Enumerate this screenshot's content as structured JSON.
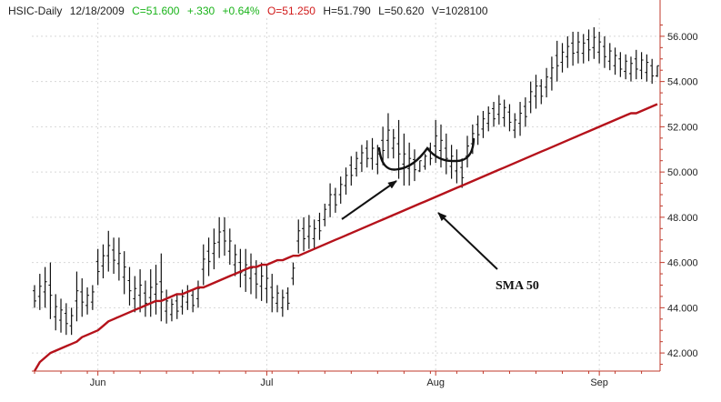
{
  "header": {
    "symbol": "HSIC-Daily",
    "date": "12/18/2009",
    "close": "C=51.600",
    "change": "+.330",
    "change_pct": "+0.64%",
    "open": "O=51.250",
    "high": "H=51.790",
    "low": "L=50.620",
    "volume": "V=1028100"
  },
  "colors": {
    "up": "#19b319",
    "down": "#d11a1a",
    "text": "#222222",
    "price_bars": "#111111",
    "sma": "#b5121b",
    "axis": "#c0392b",
    "grid": "#d8d8d8"
  },
  "chart_data": {
    "type": "ohlc_bar",
    "ylim": [
      41.2,
      56.8
    ],
    "yticks": [
      "42.000",
      "44.000",
      "46.000",
      "48.000",
      "50.000",
      "52.000",
      "54.000",
      "56.000"
    ],
    "ytick_values": [
      42,
      44,
      46,
      48,
      50,
      52,
      54,
      56
    ],
    "xtick_labels": [
      "Jun",
      "Jul",
      "Aug",
      "Sep"
    ],
    "xtick_index": [
      12,
      44,
      76,
      107
    ],
    "grid": "horizontal dashed",
    "price_series": {
      "high": [
        45.0,
        45.5,
        45.8,
        46.0,
        44.6,
        44.4,
        44.2,
        44.0,
        45.6,
        45.3,
        44.9,
        45.0,
        46.6,
        46.8,
        47.4,
        47.1,
        47.1,
        46.5,
        45.8,
        45.4,
        45.7,
        45.2,
        45.7,
        45.9,
        46.4,
        44.8,
        44.4,
        44.6,
        44.8,
        45.0,
        44.8,
        45.2,
        46.8,
        47.1,
        47.5,
        48.0,
        48.0,
        47.5,
        46.8,
        46.6,
        46.6,
        46.4,
        46.1,
        46.0,
        45.9,
        45.5,
        45.0,
        44.8,
        44.9,
        46.0,
        47.9,
        48.0,
        48.1,
        47.9,
        48.2,
        48.6,
        49.5,
        49.3,
        49.8,
        50.2,
        50.7,
        50.9,
        51.2,
        51.4,
        51.5,
        51.2,
        52.0,
        52.6,
        51.9,
        52.3,
        51.7,
        51.3,
        51.0,
        50.5,
        50.8,
        51.3,
        52.3,
        52.1,
        51.7,
        51.2,
        51.0,
        50.6,
        51.6,
        52.1,
        52.5,
        52.7,
        52.9,
        53.1,
        53.4,
        53.2,
        53.0,
        52.6,
        53.1,
        53.3,
        54.0,
        54.3,
        54.1,
        54.6,
        55.1,
        55.8,
        55.7,
        56.0,
        56.2,
        56.2,
        56.1,
        56.3,
        56.4,
        56.2,
        56.0,
        55.7,
        55.5,
        55.3,
        55.2,
        55.1,
        55.4,
        55.3,
        55.2,
        55.0,
        54.7
      ],
      "low": [
        44.0,
        43.9,
        44.0,
        43.5,
        43.0,
        42.9,
        42.8,
        42.8,
        43.4,
        43.6,
        43.7,
        43.9,
        45.0,
        45.3,
        45.6,
        45.5,
        45.2,
        44.6,
        44.1,
        43.8,
        43.8,
        43.6,
        43.6,
        43.7,
        43.4,
        43.3,
        43.4,
        43.5,
        43.7,
        43.9,
        43.8,
        44.0,
        45.0,
        45.4,
        45.7,
        46.2,
        46.3,
        45.9,
        45.4,
        44.9,
        44.7,
        44.6,
        44.4,
        44.3,
        44.2,
        43.8,
        43.8,
        43.6,
        43.9,
        45.0,
        46.4,
        46.5,
        46.6,
        46.6,
        47.0,
        47.6,
        48.0,
        48.2,
        48.6,
        49.0,
        49.4,
        49.8,
        50.0,
        50.2,
        50.1,
        49.9,
        50.3,
        50.6,
        50.6,
        49.7,
        49.4,
        49.4,
        49.6,
        50.0,
        50.1,
        50.3,
        50.4,
        50.2,
        49.9,
        49.7,
        49.5,
        49.3,
        50.2,
        50.8,
        51.2,
        51.5,
        51.8,
        52.0,
        52.1,
        52.0,
        51.8,
        51.5,
        51.6,
        52.0,
        52.6,
        52.8,
        53.0,
        53.3,
        53.6,
        54.0,
        54.4,
        54.6,
        54.7,
        54.8,
        54.8,
        54.9,
        55.0,
        54.8,
        54.6,
        54.5,
        54.3,
        54.2,
        54.1,
        54.0,
        54.1,
        54.1,
        54.0,
        53.9,
        54.2
      ]
    },
    "sma_series": {
      "name": "SMA 50",
      "values": [
        41.2,
        41.6,
        41.8,
        42.0,
        42.1,
        42.2,
        42.3,
        42.4,
        42.5,
        42.7,
        42.8,
        42.9,
        43.0,
        43.2,
        43.4,
        43.5,
        43.6,
        43.7,
        43.8,
        43.9,
        44.0,
        44.1,
        44.2,
        44.3,
        44.3,
        44.4,
        44.5,
        44.6,
        44.6,
        44.7,
        44.8,
        44.9,
        44.9,
        45.0,
        45.1,
        45.2,
        45.3,
        45.4,
        45.5,
        45.6,
        45.7,
        45.8,
        45.8,
        45.9,
        45.9,
        46.0,
        46.1,
        46.1,
        46.2,
        46.3,
        46.3,
        46.4,
        46.5,
        46.6,
        46.7,
        46.8,
        46.9,
        47.0,
        47.1,
        47.2,
        47.3,
        47.4,
        47.5,
        47.6,
        47.7,
        47.8,
        47.9,
        48.0,
        48.1,
        48.2,
        48.3,
        48.4,
        48.5,
        48.6,
        48.7,
        48.8,
        48.9,
        49.0,
        49.1,
        49.2,
        49.3,
        49.4,
        49.5,
        49.6,
        49.7,
        49.8,
        49.9,
        50.0,
        50.1,
        50.2,
        50.3,
        50.4,
        50.5,
        50.6,
        50.7,
        50.8,
        50.9,
        51.0,
        51.1,
        51.2,
        51.3,
        51.4,
        51.5,
        51.6,
        51.7,
        51.8,
        51.9,
        52.0,
        52.1,
        52.2,
        52.3,
        52.4,
        52.5,
        52.6,
        52.6,
        52.7,
        52.8,
        52.9,
        53.0
      ]
    },
    "annotation": {
      "label": "SMA 50"
    }
  }
}
